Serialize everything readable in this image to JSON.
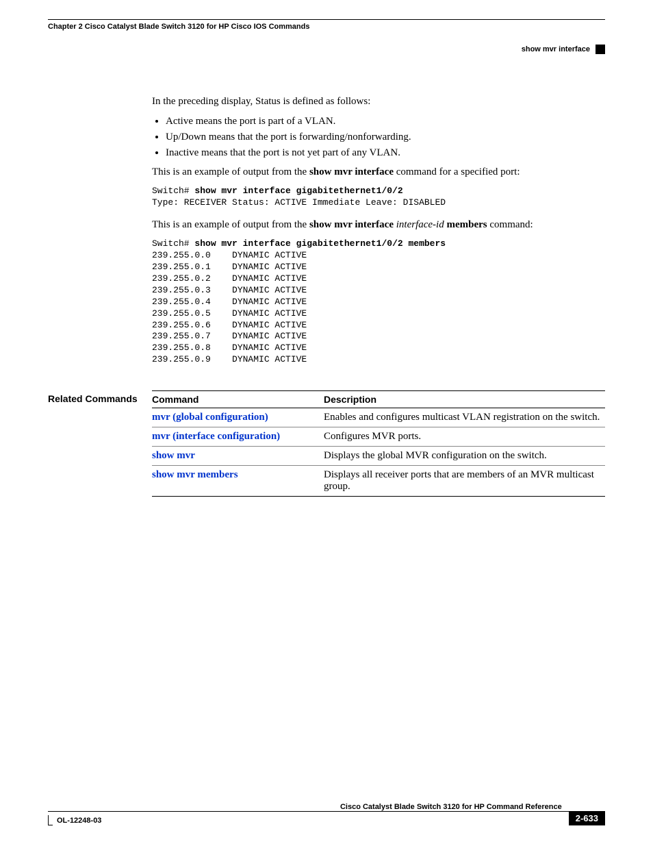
{
  "header": {
    "chapter": "Chapter 2  Cisco Catalyst Blade Switch 3120 for HP Cisco IOS Commands",
    "section": "show mvr interface"
  },
  "body": {
    "intro": "In the preceding display, Status is defined as follows:",
    "bullets": [
      "Active means the port is part of a VLAN.",
      "Up/Down means that the port is forwarding/nonforwarding.",
      "Inactive means that the port is not yet part of any VLAN."
    ],
    "example1": {
      "lead_pre": "This is an example of output from the ",
      "lead_bold": "show mvr interface",
      "lead_post": " command for a specified port:",
      "prompt": "Switch# ",
      "cmd": "show mvr interface gigabitethernet1/0/2",
      "out": "Type: RECEIVER Status: ACTIVE Immediate Leave: DISABLED"
    },
    "example2": {
      "lead_pre": "This is an example of output from the ",
      "lead_bold1": "show mvr interface",
      "lead_mid": " ",
      "lead_italic": "interface-id",
      "lead_mid2": " ",
      "lead_bold2": "members",
      "lead_post": " command:",
      "prompt": "Switch# ",
      "cmd": "show mvr interface gigabitethernet1/0/2 members",
      "rows": [
        "239.255.0.0    DYNAMIC ACTIVE",
        "239.255.0.1    DYNAMIC ACTIVE",
        "239.255.0.2    DYNAMIC ACTIVE",
        "239.255.0.3    DYNAMIC ACTIVE",
        "239.255.0.4    DYNAMIC ACTIVE",
        "239.255.0.5    DYNAMIC ACTIVE",
        "239.255.0.6    DYNAMIC ACTIVE",
        "239.255.0.7    DYNAMIC ACTIVE",
        "239.255.0.8    DYNAMIC ACTIVE",
        "239.255.0.9    DYNAMIC ACTIVE"
      ]
    }
  },
  "related": {
    "label": "Related Commands",
    "col1": "Command",
    "col2": "Description",
    "rows": [
      {
        "cmd": "mvr (global configuration)",
        "desc": "Enables and configures multicast VLAN registration on the switch."
      },
      {
        "cmd": "mvr (interface configuration)",
        "desc": "Configures MVR ports."
      },
      {
        "cmd": "show mvr",
        "desc": "Displays the global MVR configuration on the switch."
      },
      {
        "cmd": "show mvr members",
        "desc": "Displays all receiver ports that are members of an MVR multicast group."
      }
    ]
  },
  "footer": {
    "doc": "Cisco Catalyst Blade Switch 3120 for HP Command Reference",
    "ol": "OL-12248-03",
    "page": "2-633"
  }
}
